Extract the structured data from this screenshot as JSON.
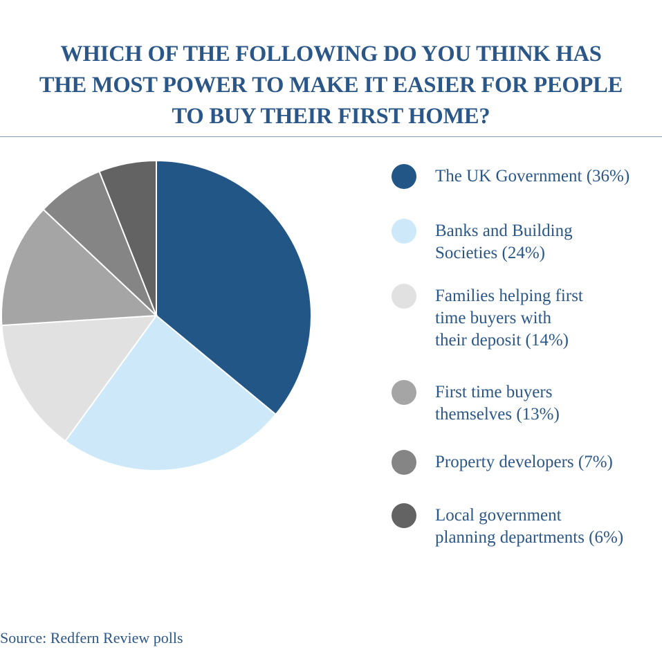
{
  "title_lines": [
    "WHICH OF THE FOLLOWING DO YOU THINK HAS",
    "THE MOST POWER TO MAKE IT EASIER FOR PEOPLE",
    "TO BUY THEIR FIRST HOME?"
  ],
  "source": "Source: Redfern Review polls",
  "chart_data": {
    "type": "pie",
    "title": "WHICH OF THE FOLLOWING DO YOU THINK HAS THE MOST POWER TO MAKE IT EASIER FOR PEOPLE TO BUY THEIR FIRST HOME?",
    "legend_position": "right",
    "slices": [
      {
        "label_lines": [
          "The UK Government (36%)"
        ],
        "value": 36,
        "color": "#215687"
      },
      {
        "label_lines": [
          "Banks and Building",
          "Societies (24%)"
        ],
        "value": 24,
        "color": "#cce8f9"
      },
      {
        "label_lines": [
          "Families helping first",
          "time buyers with",
          "their deposit (14%)"
        ],
        "value": 14,
        "color": "#e1e1e1"
      },
      {
        "label_lines": [
          "First time buyers",
          "themselves (13%)"
        ],
        "value": 13,
        "color": "#a5a5a5"
      },
      {
        "label_lines": [
          "Property developers (7%)"
        ],
        "value": 7,
        "color": "#858585"
      },
      {
        "label_lines": [
          "Local government",
          "planning departments (6%)"
        ],
        "value": 6,
        "color": "#636363"
      }
    ]
  }
}
